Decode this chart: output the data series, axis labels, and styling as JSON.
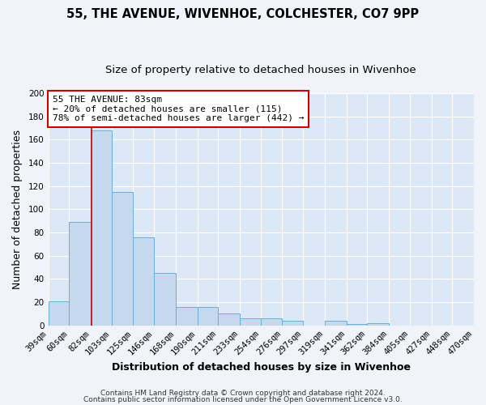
{
  "title": "55, THE AVENUE, WIVENHOE, COLCHESTER, CO7 9PP",
  "subtitle": "Size of property relative to detached houses in Wivenhoe",
  "xlabel": "Distribution of detached houses by size in Wivenhoe",
  "ylabel": "Number of detached properties",
  "bar_values": [
    21,
    89,
    168,
    115,
    76,
    45,
    16,
    16,
    10,
    6,
    6,
    4,
    0,
    4,
    1,
    2,
    0,
    0,
    0,
    0
  ],
  "bar_labels": [
    "39sqm",
    "60sqm",
    "82sqm",
    "103sqm",
    "125sqm",
    "146sqm",
    "168sqm",
    "190sqm",
    "211sqm",
    "233sqm",
    "254sqm",
    "276sqm",
    "297sqm",
    "319sqm",
    "341sqm",
    "362sqm",
    "384sqm",
    "405sqm",
    "427sqm",
    "448sqm",
    "470sqm"
  ],
  "bin_edges": [
    39,
    60,
    82,
    103,
    125,
    146,
    168,
    190,
    211,
    233,
    254,
    276,
    297,
    319,
    341,
    362,
    384,
    405,
    427,
    448,
    470
  ],
  "bar_color": "#c5d8ee",
  "bar_edge_color": "#6aaed6",
  "property_line_x": 83,
  "property_line_color": "#cc0000",
  "ylim": [
    0,
    200
  ],
  "yticks": [
    0,
    20,
    40,
    60,
    80,
    100,
    120,
    140,
    160,
    180,
    200
  ],
  "annotation_title": "55 THE AVENUE: 83sqm",
  "annotation_line1": "← 20% of detached houses are smaller (115)",
  "annotation_line2": "78% of semi-detached houses are larger (442) →",
  "annotation_box_color": "#cc0000",
  "footer_line1": "Contains HM Land Registry data © Crown copyright and database right 2024.",
  "footer_line2": "Contains public sector information licensed under the Open Government Licence v3.0.",
  "bg_color": "#f0f4fa",
  "plot_bg_color": "#dce8f5",
  "grid_color": "#ffffff",
  "title_fontsize": 10.5,
  "subtitle_fontsize": 9.5,
  "label_fontsize": 9,
  "tick_fontsize": 7.5,
  "annotation_fontsize": 8,
  "footer_fontsize": 6.5
}
